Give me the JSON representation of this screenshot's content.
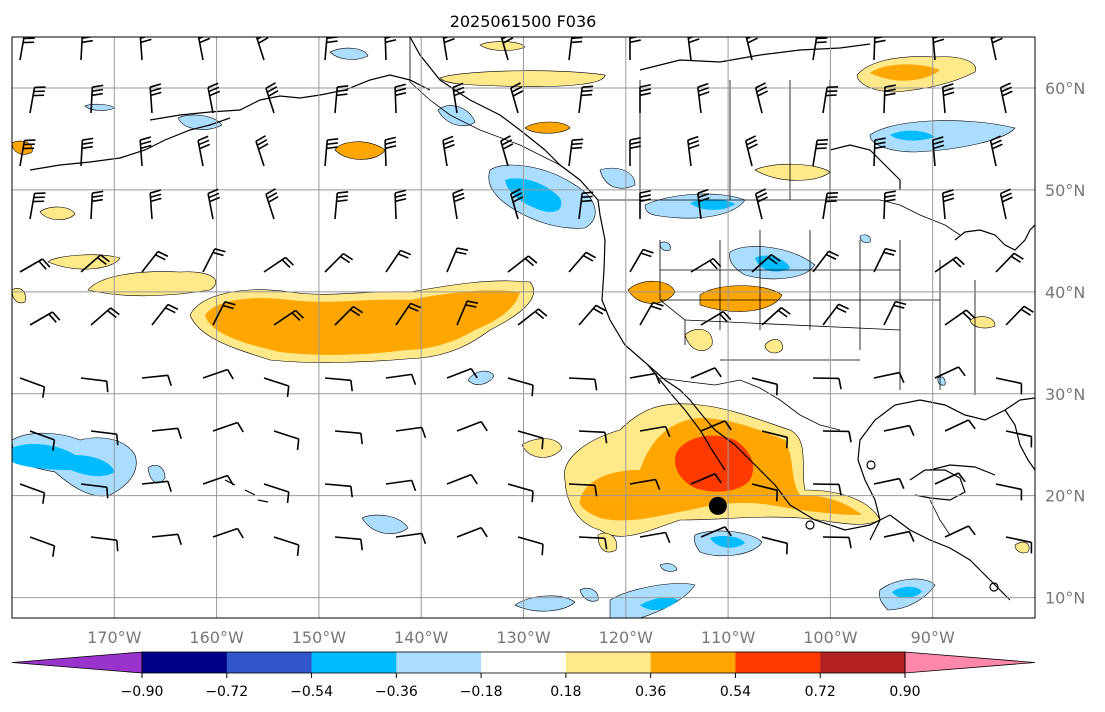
{
  "title": "2025061500 F036",
  "map": {
    "lon_range": [
      -180,
      -80
    ],
    "lat_range": [
      8,
      65
    ],
    "grid": true,
    "lon_ticks": [
      {
        "value": -170,
        "label": "170°W"
      },
      {
        "value": -160,
        "label": "160°W"
      },
      {
        "value": -150,
        "label": "150°W"
      },
      {
        "value": -140,
        "label": "140°W"
      },
      {
        "value": -130,
        "label": "130°W"
      },
      {
        "value": -120,
        "label": "120°W"
      },
      {
        "value": -110,
        "label": "110°W"
      },
      {
        "value": -100,
        "label": "100°W"
      },
      {
        "value": -90,
        "label": "90°W"
      }
    ],
    "lat_ticks": [
      {
        "value": 60,
        "label": "60°N"
      },
      {
        "value": 50,
        "label": "50°N"
      },
      {
        "value": 40,
        "label": "40°N"
      },
      {
        "value": 30,
        "label": "30°N"
      },
      {
        "value": 20,
        "label": "20°N"
      },
      {
        "value": 10,
        "label": "10°N"
      }
    ],
    "marker": {
      "lon": -111,
      "lat": 19
    }
  },
  "colorbar": {
    "levels": [
      -0.9,
      -0.72,
      -0.54,
      -0.36,
      -0.18,
      0.18,
      0.36,
      0.54,
      0.72,
      0.9
    ],
    "labels": [
      "−0.90",
      "−0.72",
      "−0.54",
      "−0.36",
      "−0.18",
      "0.18",
      "0.36",
      "0.54",
      "0.72",
      "0.90"
    ],
    "under_color": "#9933cc",
    "over_color": "#ff88aa",
    "colors": [
      "#000088",
      "#3355cc",
      "#00bbff",
      "#aaddff",
      "#ffffff",
      "#ffe98a",
      "#ffa600",
      "#ff3a00",
      "#b22222"
    ]
  }
}
